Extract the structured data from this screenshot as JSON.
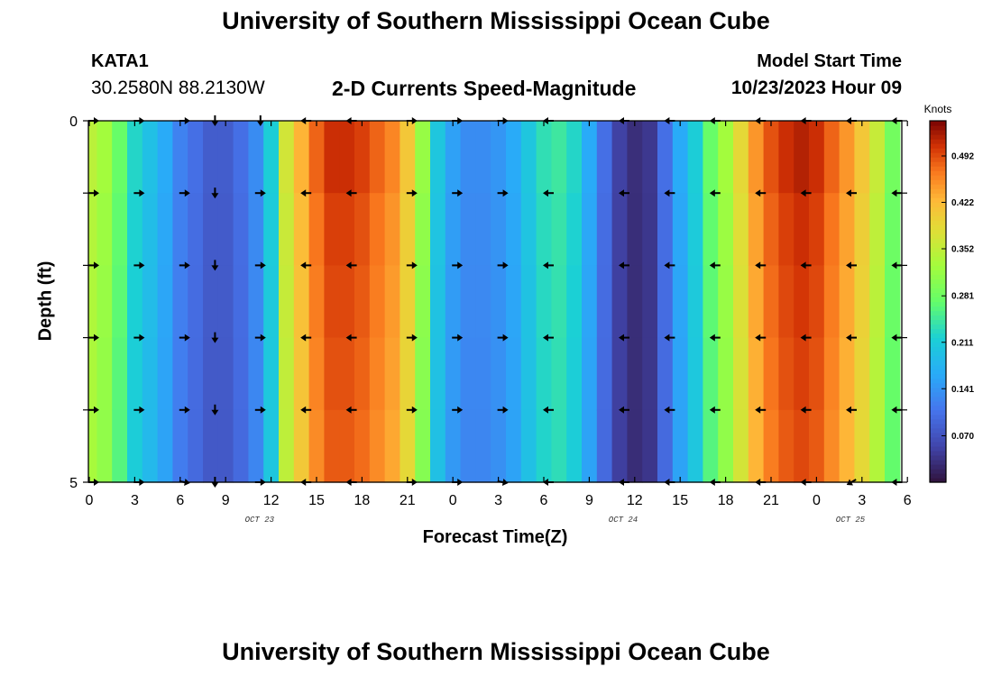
{
  "header": {
    "title": "University of Southern Mississippi Ocean Cube",
    "station_id": "KATA1",
    "coordinates": "30.2580N  88.2130W",
    "subtitle": "2-D Currents Speed-Magnitude",
    "model_label": "Model Start Time",
    "model_time": "10/23/2023 Hour 09"
  },
  "footer": {
    "title": "University of Southern Mississippi Ocean Cube"
  },
  "chart_data": {
    "type": "heatmap",
    "title": "2-D Currents Speed-Magnitude",
    "xlabel": "Forecast Time(Z)",
    "ylabel": "Depth (ft)",
    "x_hours": [
      0,
      1,
      2,
      3,
      4,
      5,
      6,
      7,
      8,
      9,
      10,
      11,
      12,
      13,
      14,
      15,
      16,
      17,
      18,
      19,
      20,
      21,
      22,
      23,
      24,
      25,
      26,
      27,
      28,
      29,
      30,
      31,
      32,
      33,
      34,
      35,
      36,
      37,
      38,
      39,
      40,
      41,
      42,
      43,
      44,
      45,
      46,
      47,
      48,
      49,
      50,
      51,
      52,
      53
    ],
    "x_ticks": [
      "0",
      "3",
      "6",
      "9",
      "12",
      "15",
      "18",
      "21",
      "0",
      "3",
      "6",
      "9",
      "12",
      "15",
      "18",
      "21",
      "0",
      "3",
      "6"
    ],
    "date_labels": [
      {
        "label": "OCT 23",
        "hour": 11
      },
      {
        "label": "OCT 24",
        "hour": 35
      },
      {
        "label": "OCT 25",
        "hour": 50
      }
    ],
    "y_ticks": [
      "0",
      "5"
    ],
    "ylim": [
      0,
      5
    ],
    "xlim": [
      0,
      54
    ],
    "colorbar": {
      "title": "Knots",
      "min": 0.0,
      "max": 0.545,
      "ticks": [
        "0.492",
        "0.422",
        "0.352",
        "0.281",
        "0.211",
        "0.141",
        "0.070"
      ],
      "tick_values": [
        0.492,
        0.422,
        0.352,
        0.281,
        0.211,
        0.141,
        0.07
      ]
    },
    "speed_by_hour": [
      0.34,
      0.32,
      0.27,
      0.22,
      0.19,
      0.16,
      0.12,
      0.1,
      0.08,
      0.08,
      0.1,
      0.13,
      0.21,
      0.36,
      0.42,
      0.47,
      0.5,
      0.5,
      0.49,
      0.47,
      0.45,
      0.4,
      0.31,
      0.2,
      0.15,
      0.13,
      0.13,
      0.14,
      0.16,
      0.2,
      0.23,
      0.24,
      0.22,
      0.16,
      0.1,
      0.05,
      0.03,
      0.04,
      0.1,
      0.16,
      0.21,
      0.27,
      0.32,
      0.38,
      0.44,
      0.48,
      0.5,
      0.51,
      0.5,
      0.47,
      0.44,
      0.4,
      0.35,
      0.28
    ],
    "depth_rows": 5,
    "arrow_hours": [
      0,
      3,
      6,
      8,
      11,
      14,
      17,
      21,
      24,
      27,
      30,
      35,
      38,
      41,
      44,
      47,
      50,
      53
    ],
    "arrow_angles": [
      [
        0,
        0,
        0,
        90,
        90,
        180,
        180,
        0,
        0,
        0,
        180,
        180,
        180,
        180,
        180,
        180,
        180,
        180
      ],
      [
        0,
        0,
        0,
        90,
        0,
        180,
        180,
        0,
        0,
        0,
        180,
        180,
        180,
        180,
        180,
        180,
        180,
        180
      ],
      [
        0,
        0,
        0,
        90,
        0,
        180,
        180,
        0,
        0,
        0,
        180,
        180,
        180,
        180,
        180,
        180,
        180,
        180
      ],
      [
        0,
        0,
        0,
        90,
        0,
        180,
        180,
        0,
        0,
        0,
        180,
        180,
        180,
        180,
        180,
        180,
        180,
        180
      ],
      [
        0,
        0,
        0,
        90,
        0,
        180,
        180,
        0,
        0,
        0,
        180,
        180,
        180,
        180,
        180,
        180,
        180,
        180
      ],
      [
        0,
        0,
        10,
        90,
        0,
        180,
        180,
        0,
        0,
        10,
        180,
        180,
        180,
        180,
        180,
        180,
        150,
        180
      ]
    ]
  }
}
